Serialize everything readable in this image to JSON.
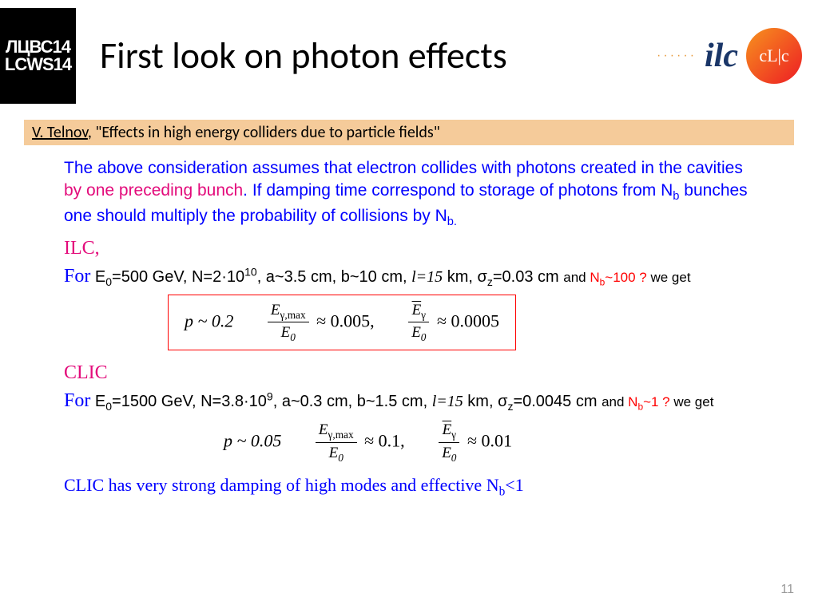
{
  "header": {
    "logo_left_line1": "ЛЦВС14",
    "logo_left_line2": "LCWS14",
    "title": "First look on photon effects",
    "ilc_text": "ilc",
    "clic_text": "cL|c"
  },
  "citation": {
    "author": "V. Telnov",
    "rest": ", \"Effects in high energy colliders due to particle fields\"",
    "bg_color": "#f5cb9a",
    "text_color": "#000000"
  },
  "intro": {
    "part1": "The above consideration assumes that electron collides with photons created in the cavities ",
    "highlight": "by one preceding bunch",
    "part2": ". If damping time correspond to  storage of photons from N",
    "part3": " bunches one should multiply the probability of collisions by N",
    "sub_b": "b",
    "sub_b2": "b.",
    "color_main": "#0000ff",
    "color_highlight": "#e30b7b"
  },
  "ilc": {
    "label": "ILC,",
    "label_color": "#e30b7b",
    "for_word": "For",
    "for_color": "#0000ff",
    "params_1": " E",
    "params_2": "=500 GeV, N=2·10",
    "params_3": ", a~3.5 cm, b~10 cm, ",
    "l_val": "l=15",
    "params_4": " km, σ",
    "params_5": "=0.03 cm ",
    "and_word": "and ",
    "nb_text": "N",
    "nb_val": "~100 ?",
    "we_get": "  we get",
    "nb_color": "#ff0000",
    "formula_p": "p ~ 0.2",
    "formula_frac1_num": "E",
    "formula_frac1_num_sub": "γ,max",
    "formula_frac1_den": "E",
    "formula_frac1_den_sub": "0",
    "formula_mid": " ≈ 0.005,",
    "formula_frac2_num": "E",
    "formula_frac2_num_sub": "γ",
    "formula_frac2_den": "E",
    "formula_frac2_den_sub": "0",
    "formula_end": " ≈ 0.0005"
  },
  "clic": {
    "label": "CLIC",
    "label_color": "#e30b7b",
    "for_word": "For",
    "for_color": "#0000ff",
    "params_1": " E",
    "params_2": "=1500 GeV, N=3.8·10",
    "params_3": ", a~0.3 cm, b~1.5 cm, ",
    "l_val": "l=15",
    "params_4": " km, σ",
    "params_5": "=0.0045 cm ",
    "and_word": "and ",
    "nb_text": "N",
    "nb_val": "~1 ?",
    "we_get": "  we get",
    "formula_p": "p ~ 0.05",
    "formula_mid": " ≈ 0.1,",
    "formula_end": " ≈ 0.01"
  },
  "footer": {
    "text1": "CLIC has very strong damping of high modes and  effective N",
    "sub": "b",
    "text2": "<1",
    "color": "#0000ff"
  },
  "page_number": "11"
}
